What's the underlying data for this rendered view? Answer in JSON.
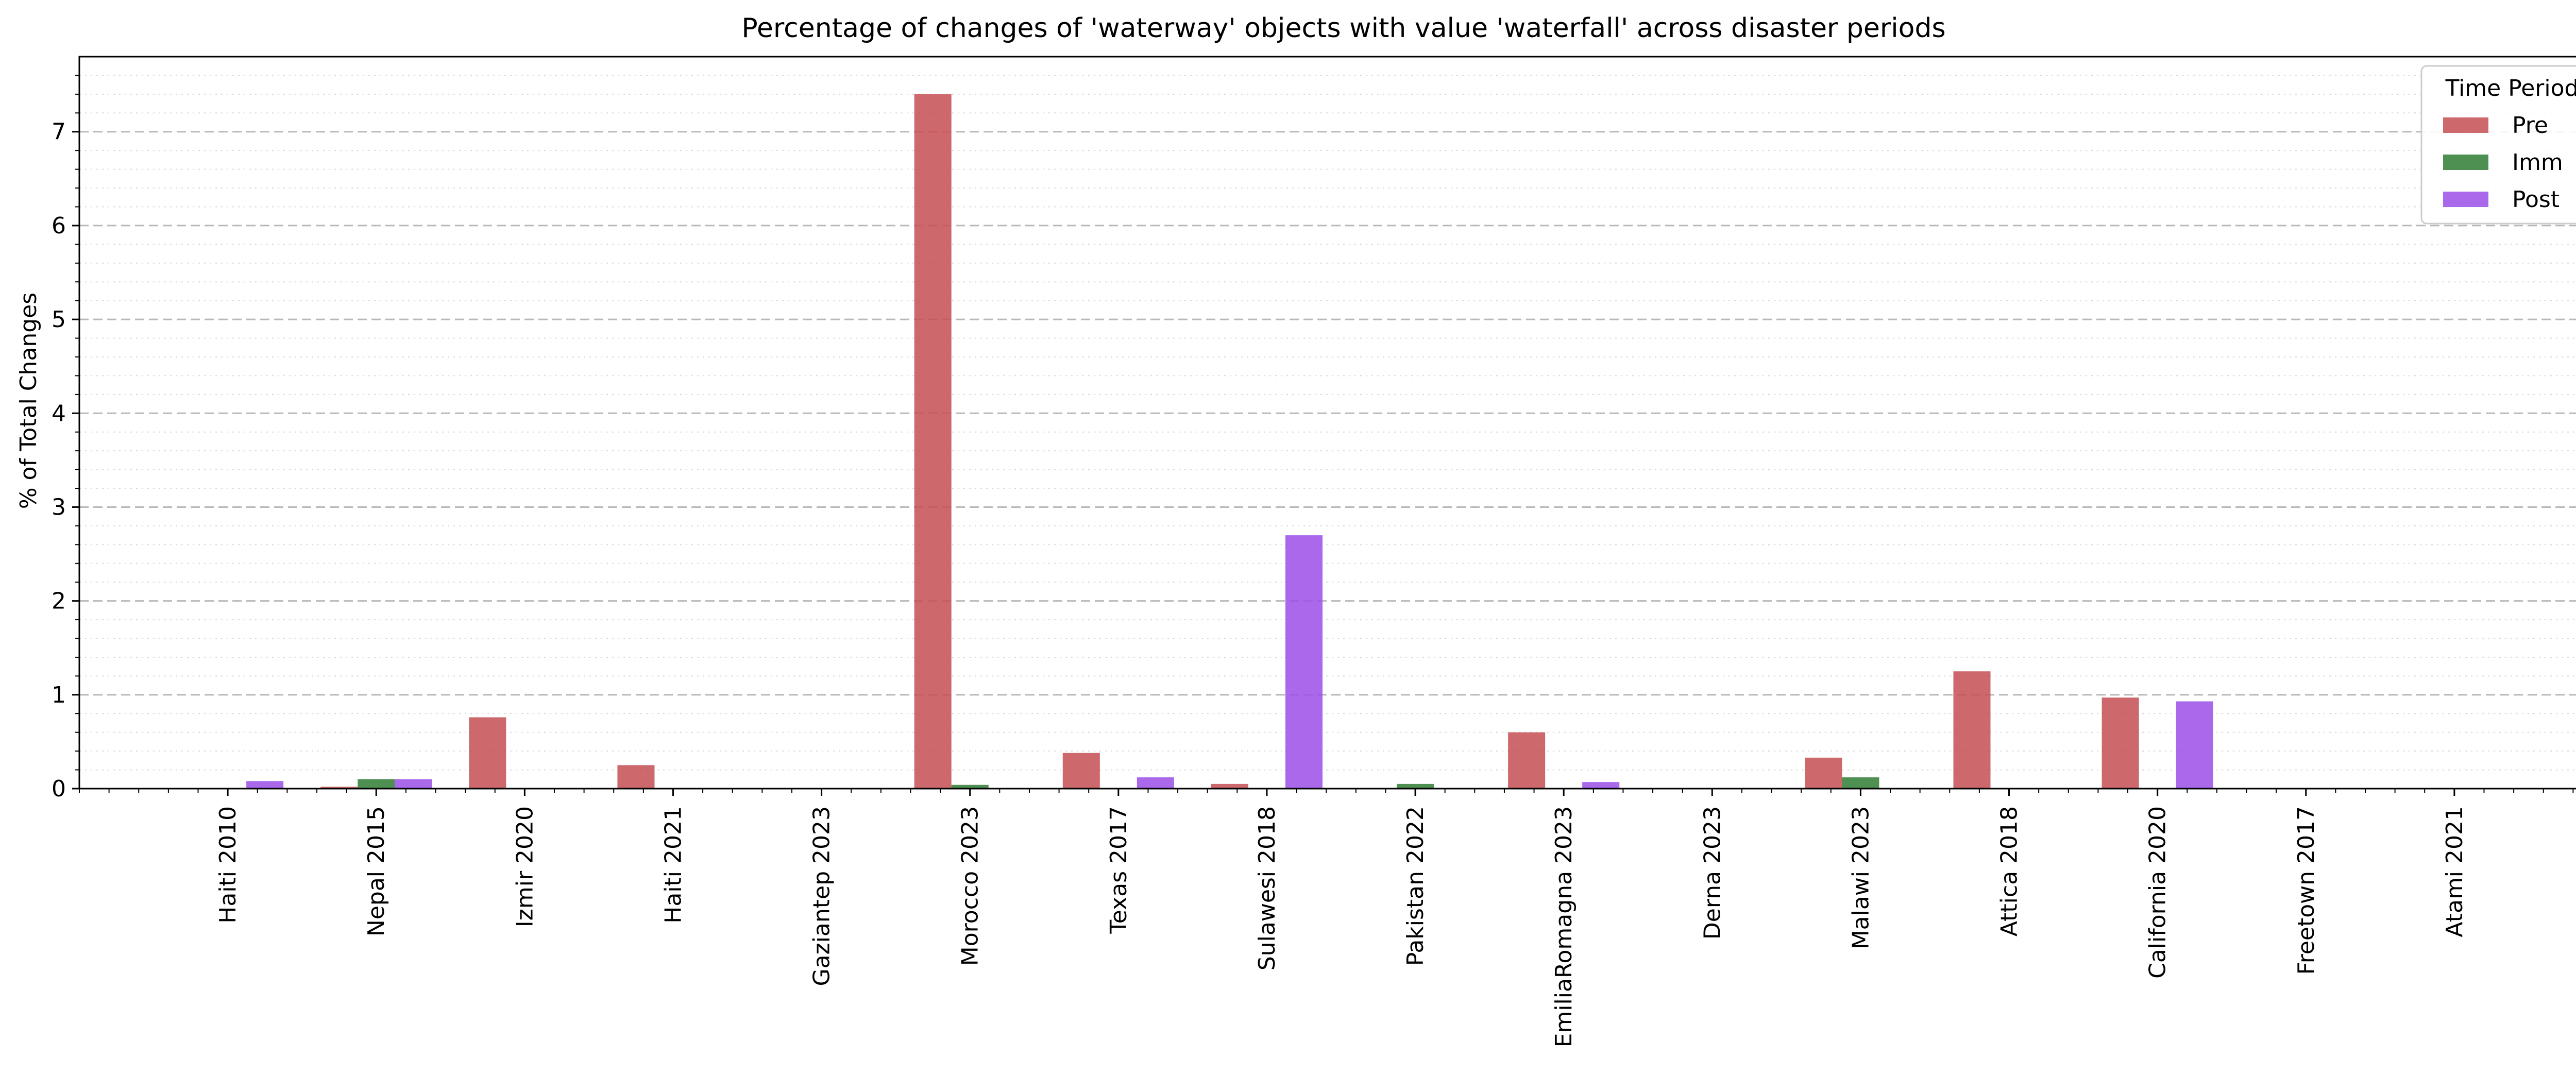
{
  "chart_data": {
    "type": "bar",
    "title": "Percentage of changes of 'waterway' objects with value 'waterfall' across disaster periods",
    "xlabel": "",
    "ylabel": "% of Total Changes",
    "ylim": [
      0,
      7.8
    ],
    "yticks": [
      0,
      1,
      2,
      3,
      4,
      5,
      6,
      7
    ],
    "grid": true,
    "legend_title": "Time Period",
    "legend_position": "top-right",
    "categories": [
      "Haiti 2010",
      "Nepal 2015",
      "Izmir 2020",
      "Haiti 2021",
      "Gaziantep 2023",
      "Morocco 2023",
      "Texas 2017",
      "Sulawesi 2018",
      "Pakistan 2022",
      "EmiliaRomagna 2023",
      "Derna 2023",
      "Malawi 2023",
      "Attica 2018",
      "California 2020",
      "Freetown 2017",
      "Atami 2021"
    ],
    "series": [
      {
        "name": "Pre",
        "color": "#c44e52",
        "values": [
          0,
          0.02,
          0.76,
          0.25,
          0,
          7.4,
          0.38,
          0.05,
          0,
          0.6,
          0,
          0.33,
          1.25,
          0.97,
          0,
          0
        ]
      },
      {
        "name": "Imm",
        "color": "#2e7d32",
        "values": [
          0,
          0.1,
          0,
          0,
          0,
          0.04,
          0,
          0,
          0.05,
          0,
          0,
          0.12,
          0,
          0,
          0,
          0
        ]
      },
      {
        "name": "Post",
        "color": "#9b4de8",
        "values": [
          0.08,
          0.1,
          0,
          0,
          0,
          0,
          0.12,
          2.7,
          0,
          0.07,
          0,
          0,
          0,
          0.93,
          0,
          0
        ]
      }
    ]
  }
}
